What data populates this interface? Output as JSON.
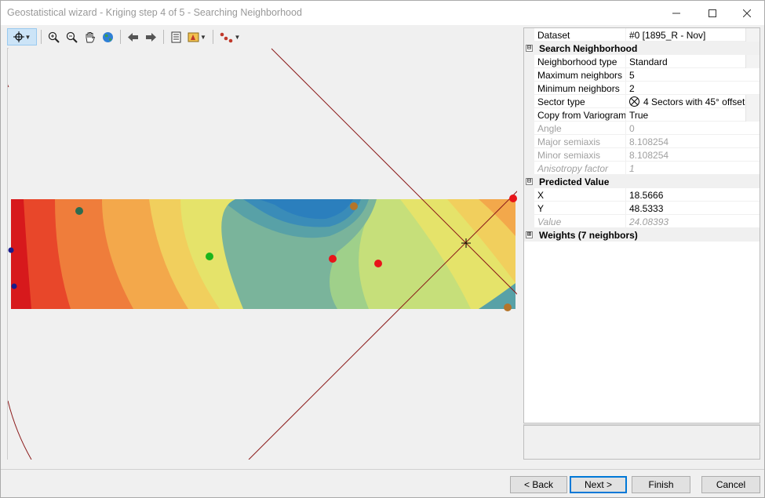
{
  "window": {
    "title": "Geostatistical wizard - Kriging step 4 of 5 - Searching Neighborhood",
    "minimize_icon": "minimize-icon",
    "maximize_icon": "maximize-icon",
    "close_icon": "close-icon"
  },
  "toolbar": {
    "items": [
      "select-pointer-icon",
      "zoom-in-icon",
      "zoom-out-icon",
      "pan-hand-icon",
      "full-extent-globe-icon",
      "back-arrow-icon",
      "forward-arrow-icon",
      "table-view-icon",
      "layer-legend-icon",
      "symbology-points-icon"
    ]
  },
  "map": {
    "surface_colors": [
      "#d7191c",
      "#e8472a",
      "#ef7d3b",
      "#f3a84b",
      "#f1cf5d",
      "#e5e36a",
      "#c6df7a",
      "#9fd08a",
      "#7ab49b",
      "#58a1a7",
      "#3a8cb8",
      "#2b7fbd"
    ],
    "points": [
      {
        "color": "#2e6b4f"
      },
      {
        "color": "#b5752a"
      },
      {
        "color": "#e8141a"
      },
      {
        "color": "#1bb51b"
      },
      {
        "color": "#e8141a"
      },
      {
        "color": "#e8141a"
      },
      {
        "color": "#1b1b8c"
      },
      {
        "color": "#1b1b8c"
      },
      {
        "color": "#b5752a"
      }
    ],
    "line_color": "#8b1a1a"
  },
  "properties": {
    "dataset": {
      "name": "Dataset",
      "value": "#0 [1895_R - Nov]"
    },
    "search_neighborhood": {
      "title": "Search Neighborhood",
      "toggle": "⊟",
      "neighborhood_type": {
        "name": "Neighborhood type",
        "value": "Standard"
      },
      "maximum_neighbors": {
        "name": "Maximum neighbors",
        "value": "5"
      },
      "minimum_neighbors": {
        "name": "Minimum neighbors",
        "value": "2"
      },
      "sector_type": {
        "name": "Sector type",
        "value": "4 Sectors with 45° offset"
      },
      "copy_from_variogram": {
        "name": "Copy from Variogram",
        "value": "True"
      },
      "angle": {
        "name": "Angle",
        "value": "0"
      },
      "major_semiaxis": {
        "name": "Major semiaxis",
        "value": "8.108254"
      },
      "minor_semiaxis": {
        "name": "Minor semiaxis",
        "value": "8.108254"
      },
      "anisotropy_factor": {
        "name": "Anisotropy factor",
        "value": "1"
      }
    },
    "predicted_value": {
      "title": "Predicted Value",
      "toggle": "⊟",
      "x": {
        "name": "X",
        "value": "18.5666"
      },
      "y": {
        "name": "Y",
        "value": "48.5333"
      },
      "value": {
        "name": "Value",
        "value": "24.08393"
      }
    },
    "weights": {
      "title": "Weights (7 neighbors)",
      "toggle": "⊞"
    }
  },
  "buttons": {
    "back": "< Back",
    "next": "Next >",
    "finish": "Finish",
    "cancel": "Cancel"
  }
}
